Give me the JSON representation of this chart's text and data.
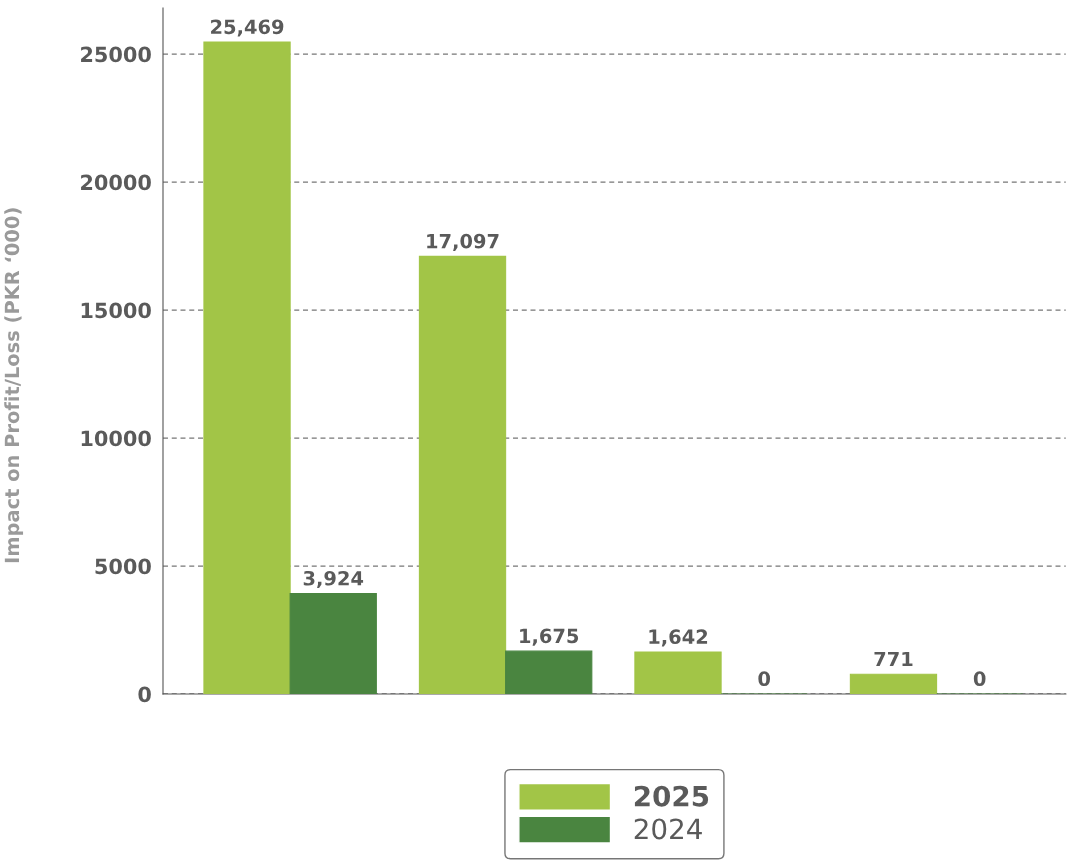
{
  "chart_data": {
    "type": "bar",
    "ylabel": "Impact on Profit/Loss (PKR ‘000)",
    "categories": [
      null,
      null,
      null,
      null
    ],
    "series": [
      {
        "name": "2025",
        "color": "#a2c547",
        "values": [
          25469,
          17097,
          1642,
          771
        ],
        "value_labels": [
          "25,469",
          "17,097",
          "1,642",
          "771"
        ]
      },
      {
        "name": "2024",
        "color": "#4a8540",
        "values": [
          3924,
          1675,
          0,
          0
        ],
        "value_labels": [
          "3,924",
          "1,675",
          "0",
          "0"
        ]
      }
    ],
    "ylim": [
      0,
      26800
    ],
    "yticks": [
      0,
      5000,
      10000,
      15000,
      20000,
      25000
    ],
    "grid": "y",
    "legend": "bottom"
  }
}
